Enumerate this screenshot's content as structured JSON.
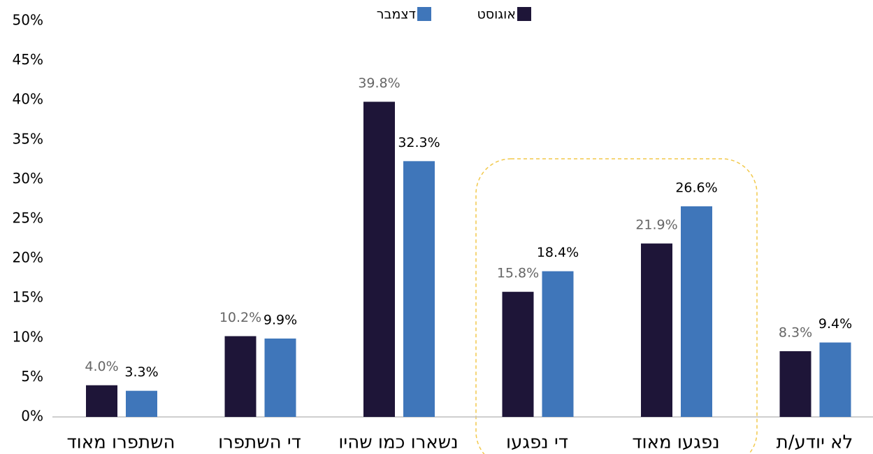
{
  "chart_data": {
    "type": "bar",
    "categories": [
      "השתפרו מאוד",
      "די השתפרו",
      "נשארו כמו שהיו",
      "די נפגעו",
      "נפגעו מאוד",
      "לא יודע/ת"
    ],
    "series": [
      {
        "name": "אוגוסט",
        "color": "#1e1538",
        "values": [
          4.0,
          10.2,
          39.8,
          15.8,
          21.9,
          8.3
        ],
        "value_labels": [
          "4.0%",
          "10.2%",
          "39.8%",
          "15.8%",
          "21.9%",
          "8.3%"
        ]
      },
      {
        "name": "דצמבר",
        "color": "#3f76ba",
        "values": [
          3.3,
          9.9,
          32.3,
          18.4,
          26.6,
          9.4
        ],
        "value_labels": [
          "3.3%",
          "9.9%",
          "32.3%",
          "18.4%",
          "26.6%",
          "9.4%"
        ]
      }
    ],
    "ylim": [
      0,
      50
    ],
    "yticks": [
      {
        "value": 0,
        "label": "0%"
      },
      {
        "value": 5,
        "label": "5%"
      },
      {
        "value": 10,
        "label": "10%"
      },
      {
        "value": 15,
        "label": "15%"
      },
      {
        "value": 20,
        "label": "20%"
      },
      {
        "value": 25,
        "label": "25%"
      },
      {
        "value": 30,
        "label": "30%"
      },
      {
        "value": 35,
        "label": "35%"
      },
      {
        "value": 40,
        "label": "40%"
      },
      {
        "value": 45,
        "label": "45%"
      },
      {
        "value": 50,
        "label": "50%"
      }
    ],
    "legend": "top"
  }
}
